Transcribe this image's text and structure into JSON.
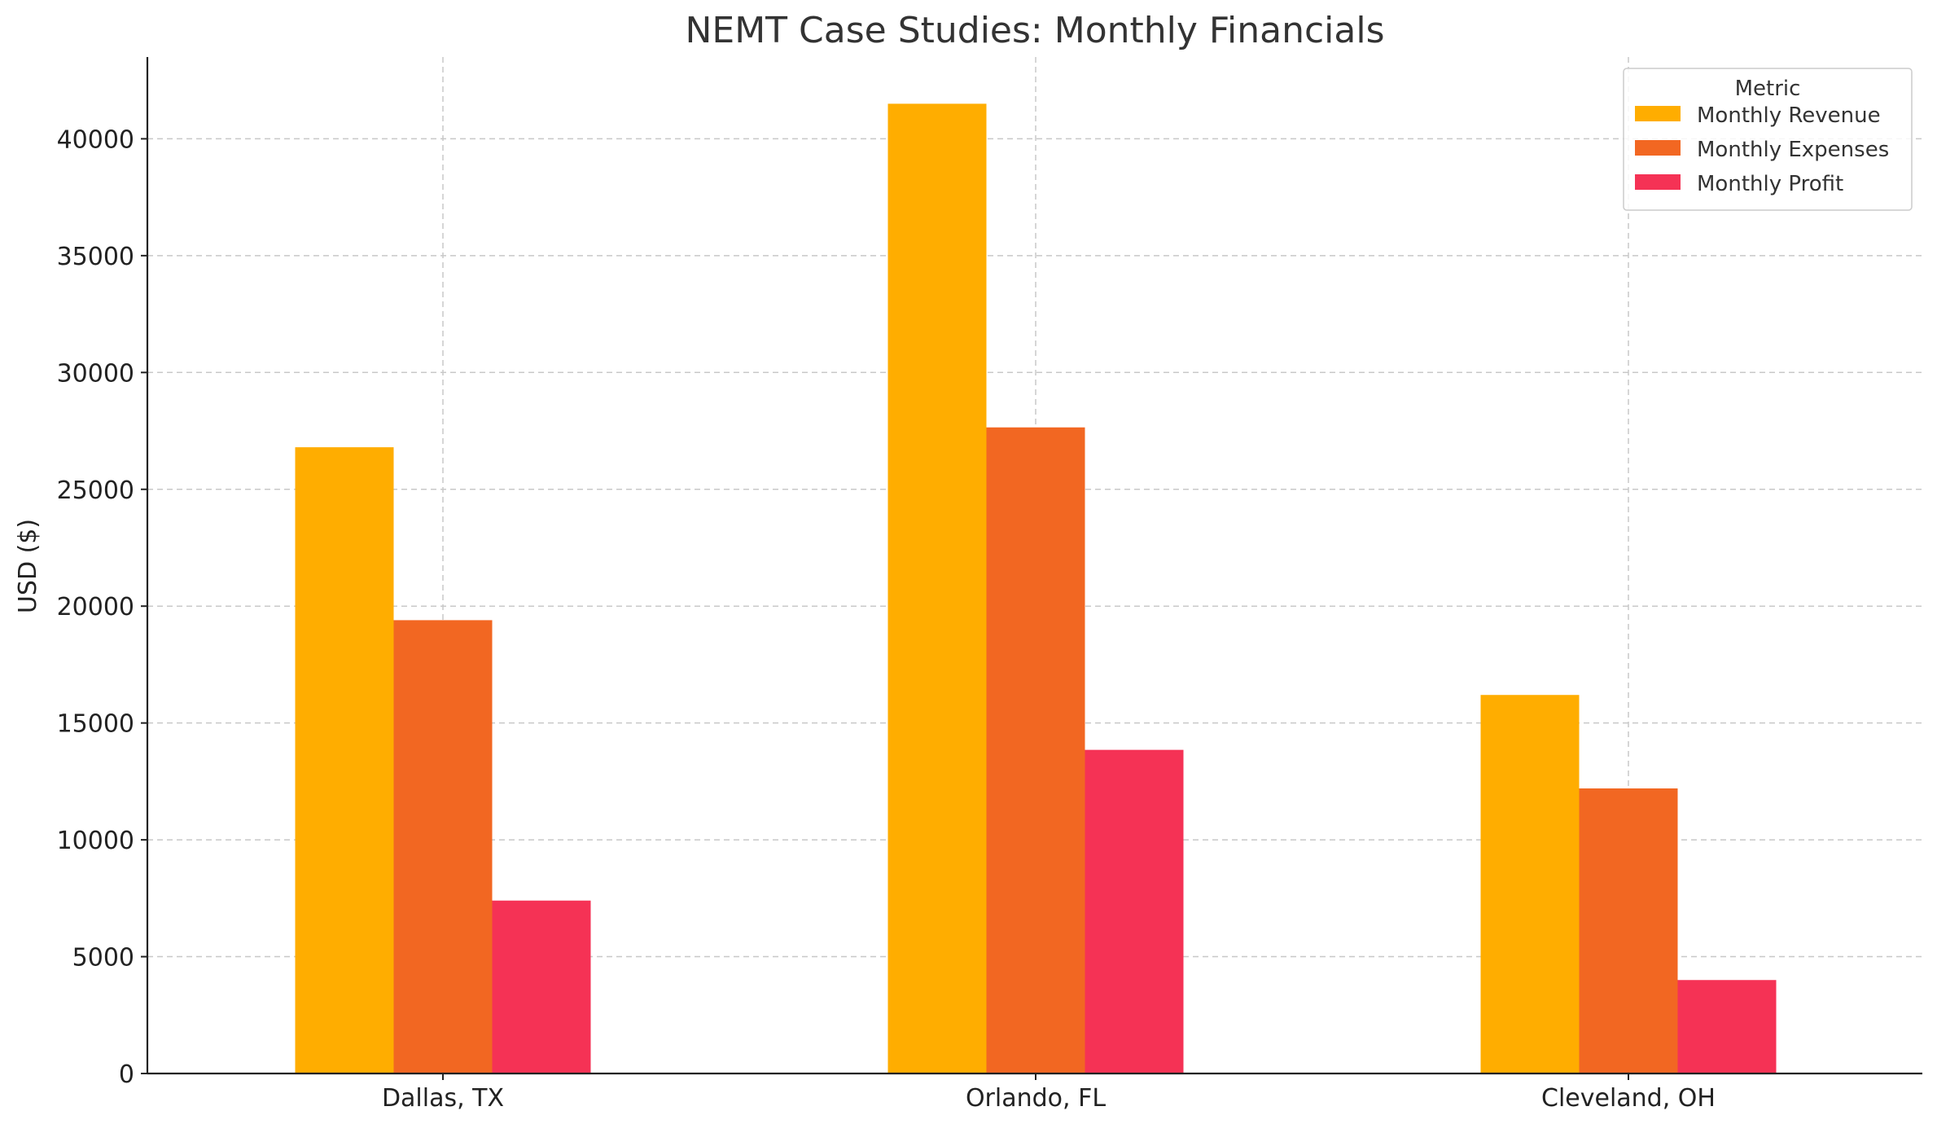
{
  "chart_data": {
    "type": "bar",
    "title": "NEMT Case Studies: Monthly Financials",
    "xlabel": "",
    "ylabel": "USD ($)",
    "categories": [
      "Dallas, TX",
      "Orlando, FL",
      "Cleveland, OH"
    ],
    "series": [
      {
        "name": "Monthly Revenue",
        "color": "#ffad00",
        "values": [
          26800,
          41500,
          16200
        ]
      },
      {
        "name": "Monthly Expenses",
        "color": "#f26722",
        "values": [
          19400,
          27650,
          12200
        ]
      },
      {
        "name": "Monthly Profit",
        "color": "#f53255",
        "values": [
          7400,
          13850,
          4000
        ]
      }
    ],
    "ylim": [
      0,
      43500
    ],
    "yticks": [
      "0",
      "5000",
      "10000",
      "15000",
      "20000",
      "25000",
      "30000",
      "35000",
      "40000"
    ],
    "grid": true,
    "legend": {
      "title": "Metric",
      "position": "top-right"
    }
  }
}
